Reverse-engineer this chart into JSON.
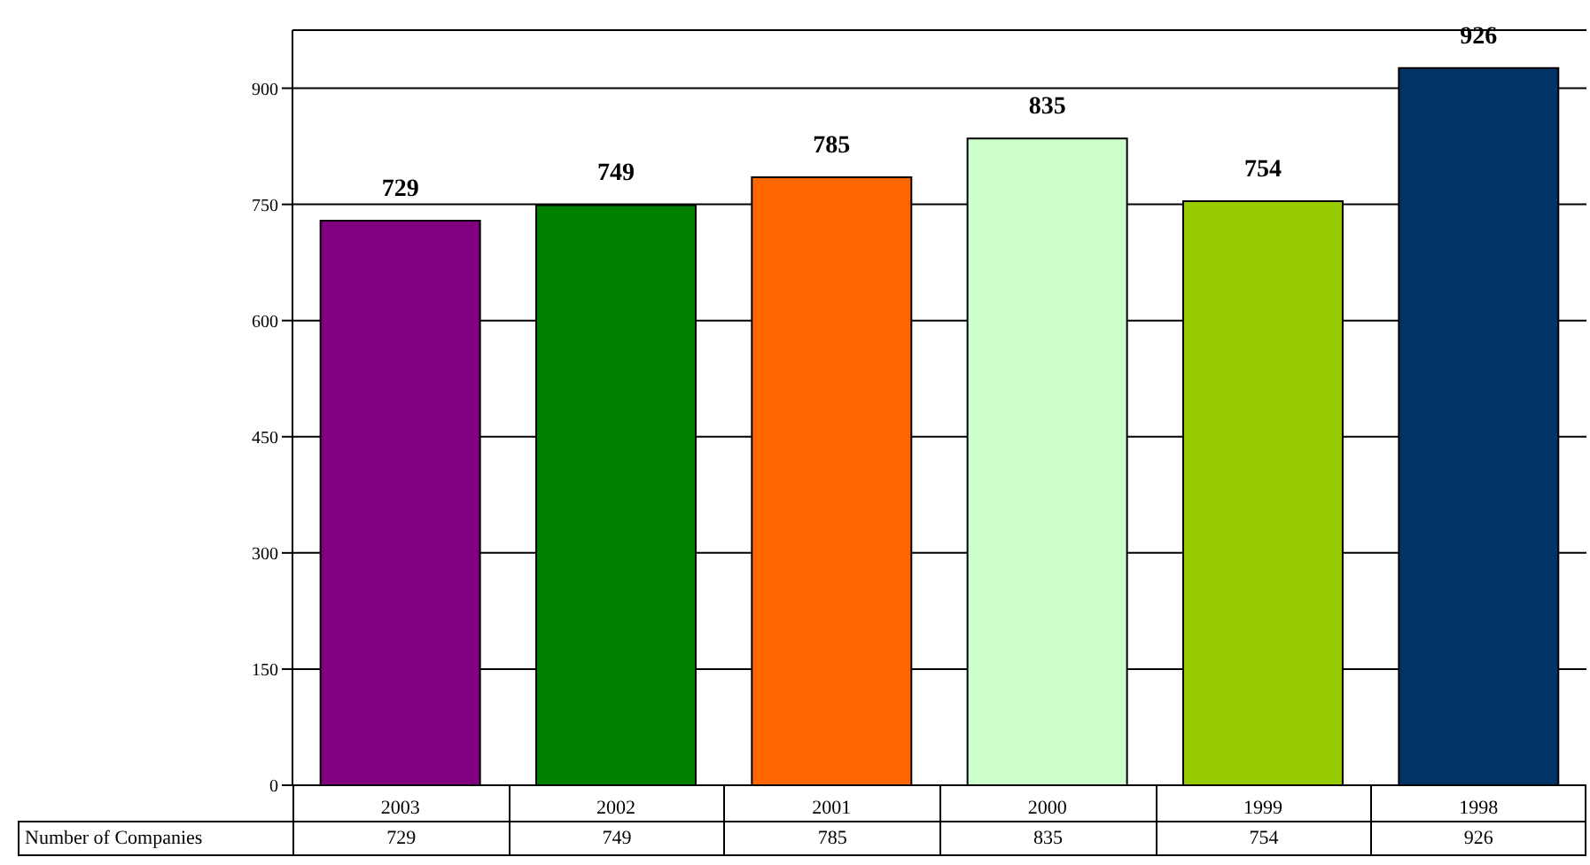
{
  "chart_data": {
    "type": "bar",
    "categories": [
      "2003",
      "2002",
      "2001",
      "2000",
      "1999",
      "1998"
    ],
    "series": [
      {
        "name": "Number of Companies",
        "colors": [
          "#800080",
          "#008000",
          "#ff6600",
          "#ccffcc",
          "#99cc00",
          "#003366"
        ],
        "values": [
          729,
          749,
          785,
          835,
          754,
          926
        ]
      }
    ],
    "annotations": [
      "729",
      "749",
      "785",
      "835",
      "754",
      "926"
    ],
    "ylim": [
      0,
      975
    ],
    "yticks": [
      0,
      150,
      300,
      450,
      600,
      750,
      900
    ],
    "grid": "y",
    "legend": "bottom",
    "data_labels": true
  }
}
